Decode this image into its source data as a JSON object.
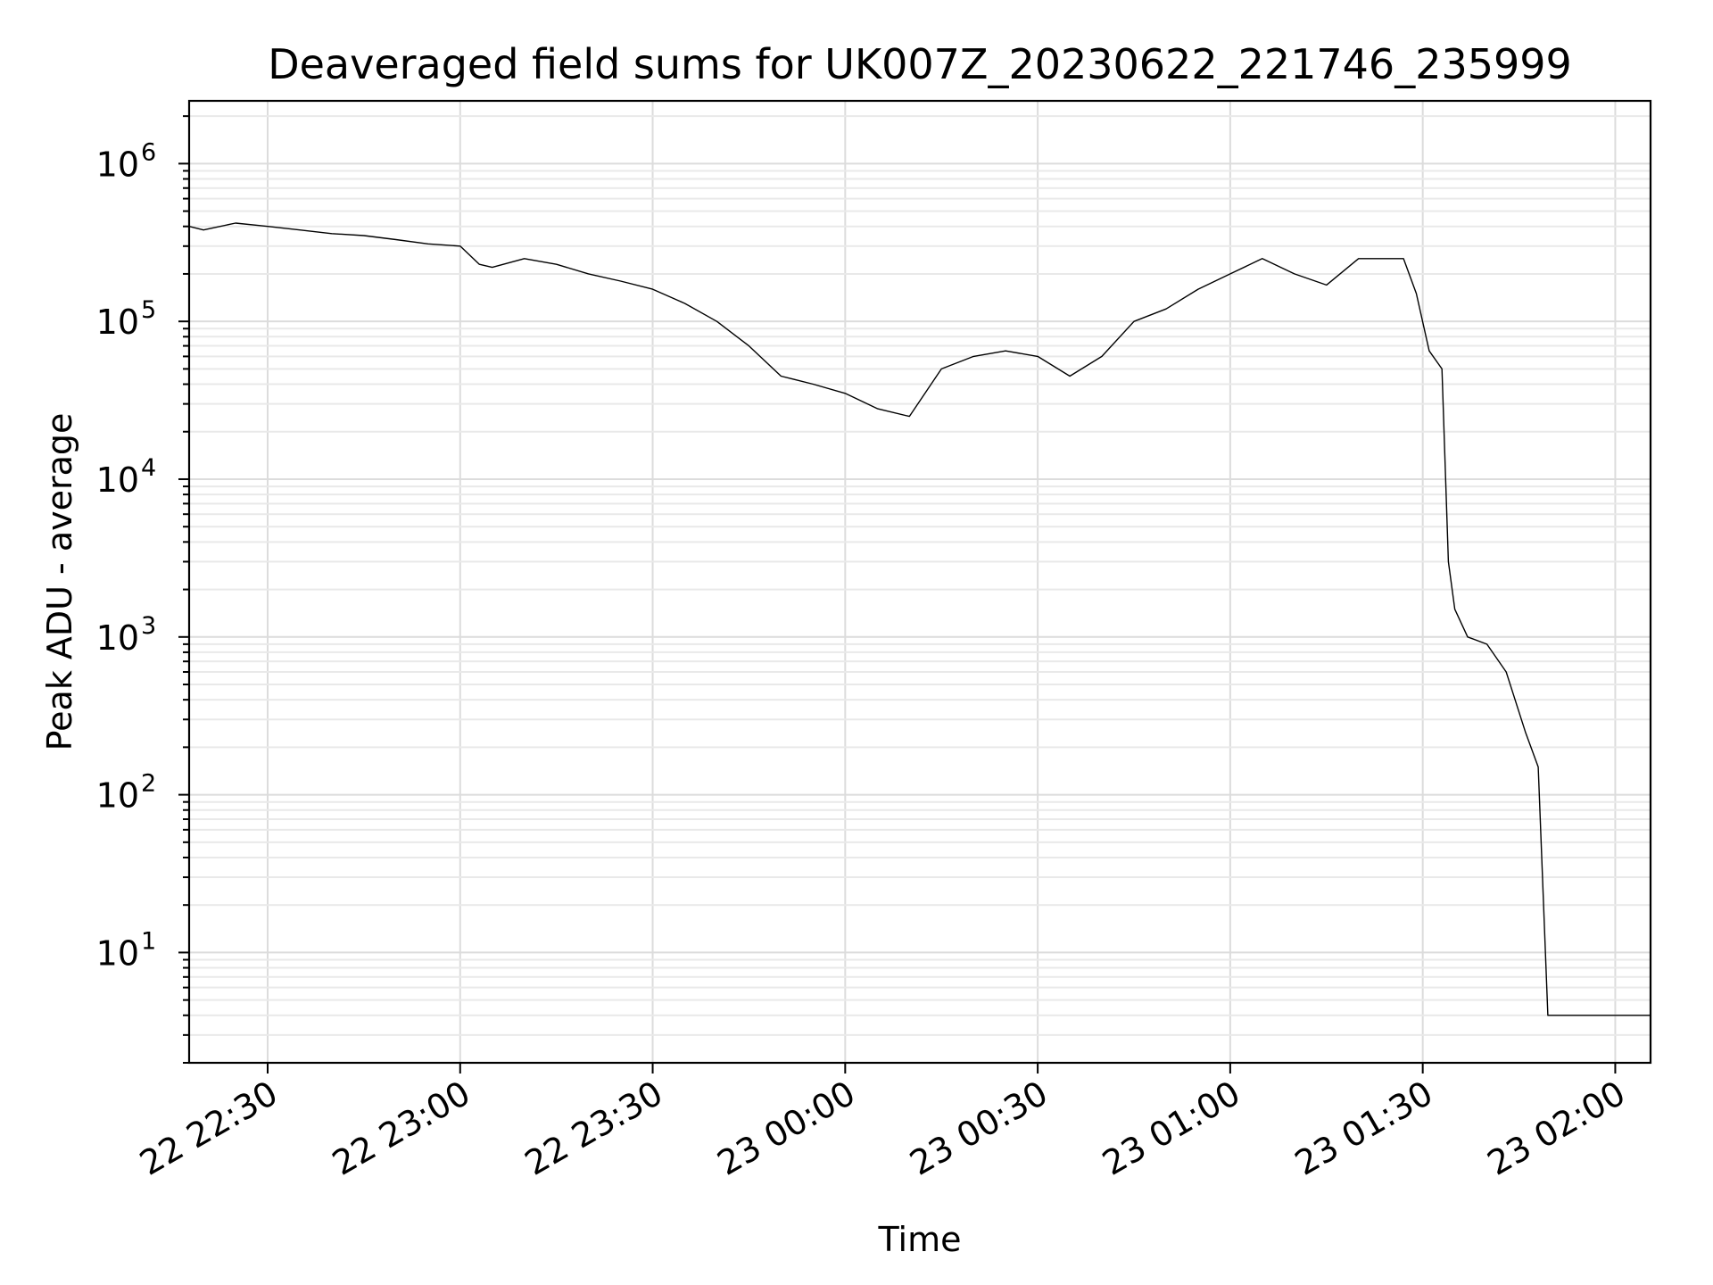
{
  "chart_data": {
    "type": "line",
    "title": "Deaveraged field sums for UK007Z_20230622_221746_235999",
    "xlabel": "Time",
    "ylabel": "Peak ADU - average",
    "yscale": "log",
    "ylim": [
      2,
      2500000
    ],
    "xlim": [
      "2023-06-22 22:17:46",
      "2023-06-23 02:05:30"
    ],
    "x_ticks": [
      {
        "t": "2023-06-22 22:30:00",
        "label": "22 22:30"
      },
      {
        "t": "2023-06-22 23:00:00",
        "label": "22 23:00"
      },
      {
        "t": "2023-06-22 23:30:00",
        "label": "22 23:30"
      },
      {
        "t": "2023-06-23 00:00:00",
        "label": "23 00:00"
      },
      {
        "t": "2023-06-23 00:30:00",
        "label": "23 00:30"
      },
      {
        "t": "2023-06-23 01:00:00",
        "label": "23 01:00"
      },
      {
        "t": "2023-06-23 01:30:00",
        "label": "23 01:30"
      },
      {
        "t": "2023-06-23 02:00:00",
        "label": "23 02:00"
      }
    ],
    "y_ticks": [
      {
        "value": 10,
        "base": "10",
        "exp": "1"
      },
      {
        "value": 100,
        "base": "10",
        "exp": "2"
      },
      {
        "value": 1000,
        "base": "10",
        "exp": "3"
      },
      {
        "value": 10000,
        "base": "10",
        "exp": "4"
      },
      {
        "value": 100000,
        "base": "10",
        "exp": "5"
      },
      {
        "value": 1000000,
        "base": "10",
        "exp": "6"
      }
    ],
    "grid": true,
    "line_color": "#000000",
    "series": [
      {
        "x": [
          "2023-06-22 22:17:46",
          "2023-06-22 22:20:00",
          "2023-06-22 22:25:00",
          "2023-06-22 22:30:00",
          "2023-06-22 22:35:00",
          "2023-06-22 22:40:00",
          "2023-06-22 22:45:00",
          "2023-06-22 22:50:00",
          "2023-06-22 22:55:00",
          "2023-06-22 23:00:00",
          "2023-06-22 23:03:00",
          "2023-06-22 23:05:00",
          "2023-06-22 23:10:00",
          "2023-06-22 23:15:00",
          "2023-06-22 23:20:00",
          "2023-06-22 23:25:00",
          "2023-06-22 23:30:00",
          "2023-06-22 23:35:00",
          "2023-06-22 23:40:00",
          "2023-06-22 23:45:00",
          "2023-06-22 23:50:00",
          "2023-06-22 23:55:00",
          "2023-06-23 00:00:00",
          "2023-06-23 00:05:00",
          "2023-06-23 00:10:00",
          "2023-06-23 00:15:00",
          "2023-06-23 00:20:00",
          "2023-06-23 00:25:00",
          "2023-06-23 00:30:00",
          "2023-06-23 00:35:00",
          "2023-06-23 00:40:00",
          "2023-06-23 00:45:00",
          "2023-06-23 00:50:00",
          "2023-06-23 00:55:00",
          "2023-06-23 01:00:00",
          "2023-06-23 01:05:00",
          "2023-06-23 01:10:00",
          "2023-06-23 01:15:00",
          "2023-06-23 01:20:00",
          "2023-06-23 01:25:00",
          "2023-06-23 01:27:00",
          "2023-06-23 01:29:00",
          "2023-06-23 01:31:00",
          "2023-06-23 01:33:00",
          "2023-06-23 01:34:00",
          "2023-06-23 01:35:00",
          "2023-06-23 01:37:00",
          "2023-06-23 01:40:00",
          "2023-06-23 01:43:00",
          "2023-06-23 01:46:00",
          "2023-06-23 01:48:00",
          "2023-06-23 01:49:30",
          "2023-06-23 01:50:00",
          "2023-06-23 01:55:00",
          "2023-06-23 02:00:00",
          "2023-06-23 02:05:30"
        ],
        "values": [
          400000,
          380000,
          420000,
          400000,
          380000,
          360000,
          350000,
          330000,
          310000,
          300000,
          230000,
          220000,
          250000,
          230000,
          200000,
          180000,
          160000,
          130000,
          100000,
          70000,
          45000,
          40000,
          35000,
          28000,
          25000,
          50000,
          60000,
          65000,
          60000,
          45000,
          60000,
          100000,
          120000,
          160000,
          200000,
          250000,
          200000,
          170000,
          250000,
          250000,
          250000,
          150000,
          65000,
          50000,
          3000,
          1500,
          1000,
          900,
          600,
          250,
          150,
          4,
          4,
          4,
          4,
          4
        ]
      }
    ]
  }
}
